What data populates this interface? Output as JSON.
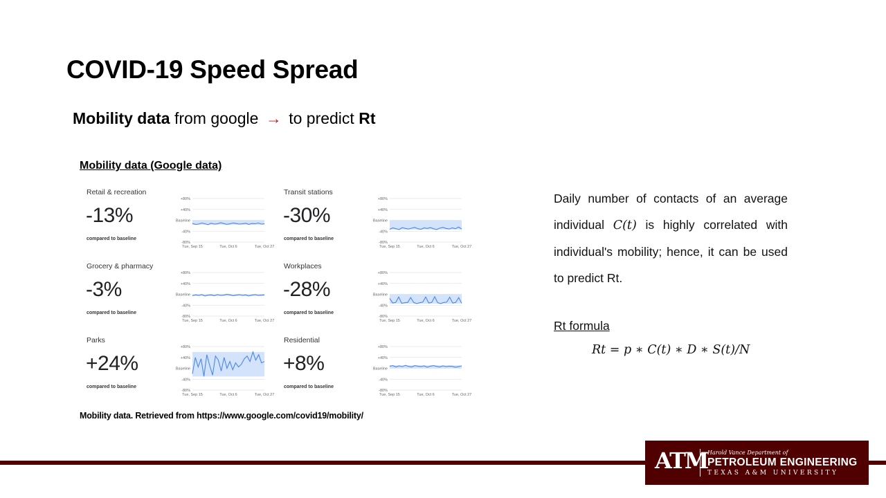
{
  "title": "COVID-19 Speed Spread",
  "subtitle": {
    "part1": "Mobility data",
    "part2": " from google ",
    "arrow": "→",
    "part3": " to predict ",
    "part4": "Rt"
  },
  "section_label": "Mobility data (Google data)",
  "chart_axis": {
    "y_ticks": [
      "+80%",
      "+40%",
      "Baseline",
      "-40%",
      "-80%"
    ],
    "x_ticks": [
      "Tue, Sep 15",
      "Tue, Oct 6",
      "Tue, Oct 27"
    ],
    "compared_label": "compared to baseline"
  },
  "chart_data": [
    {
      "type": "line",
      "category": "Retail & recreation",
      "change": "-13%",
      "ylim": [
        -80,
        80
      ],
      "values": [
        -12,
        -15,
        -14,
        -10,
        -13,
        -16,
        -11,
        -14,
        -13,
        -9,
        -12,
        -15,
        -13,
        -10,
        -12,
        -14,
        -13,
        -11,
        -15,
        -12,
        -13,
        -10,
        -14,
        -13
      ]
    },
    {
      "type": "line",
      "category": "Transit stations",
      "change": "-30%",
      "ylim": [
        -80,
        80
      ],
      "values": [
        -33,
        -28,
        -31,
        -34,
        -27,
        -30,
        -32,
        -29,
        -26,
        -31,
        -33,
        -28,
        -30,
        -27,
        -31,
        -34,
        -29,
        -26,
        -30,
        -32,
        -28,
        -31,
        -25,
        -32
      ]
    },
    {
      "type": "line",
      "category": "Grocery & pharmacy",
      "change": "-3%",
      "ylim": [
        -80,
        80
      ],
      "values": [
        -5,
        -2,
        -4,
        -1,
        -6,
        -3,
        -2,
        -5,
        -1,
        -4,
        -3,
        0,
        -2,
        -5,
        -3,
        -1,
        -4,
        -2,
        -6,
        -3,
        -1,
        -4,
        -3,
        -2
      ]
    },
    {
      "type": "line",
      "category": "Workplaces",
      "change": "-28%",
      "ylim": [
        -80,
        80
      ],
      "values": [
        -15,
        -32,
        -30,
        -10,
        -33,
        -31,
        -30,
        -12,
        -30,
        -34,
        -31,
        -29,
        -10,
        -32,
        -30,
        -9,
        -31,
        -34,
        -30,
        -29,
        -11,
        -32,
        -30,
        -12,
        -33
      ]
    },
    {
      "type": "line",
      "category": "Parks",
      "change": "+24%",
      "ylim": [
        -80,
        80
      ],
      "values": [
        -20,
        40,
        5,
        35,
        -30,
        50,
        10,
        -25,
        45,
        30,
        -10,
        40,
        0,
        25,
        -5,
        20,
        5,
        15,
        35,
        45,
        25,
        60,
        30,
        50,
        20,
        25
      ]
    },
    {
      "type": "line",
      "category": "Residential",
      "change": "+8%",
      "ylim": [
        -80,
        80
      ],
      "values": [
        8,
        10,
        5,
        9,
        6,
        11,
        7,
        5,
        10,
        8,
        6,
        9,
        4,
        8,
        10,
        7,
        5,
        9,
        6,
        8,
        7,
        4,
        6,
        9
      ]
    }
  ],
  "source": "Mobility data. Retrieved from https://www.google.com/covid19/mobility/",
  "paragraph": {
    "before": "Daily number of contacts of an average individual ",
    "math": "C(t)",
    "after": " is highly correlated with individual's mobility; hence, it can be used to predict Rt."
  },
  "rt_heading": "Rt formula",
  "formula": "Rt = p ∗ C(t) ∗ D ∗ S(t)/N",
  "logo": {
    "mark": "ATM",
    "department": "Harold Vance Department of",
    "name": "PETROLEUM ENGINEERING",
    "university": "TEXAS A&M UNIVERSITY"
  },
  "colors": {
    "maroon": "#500000",
    "arrow": "#b01e1e",
    "chart_line": "#4a86e8",
    "baseline_band": "#d3e3fb"
  }
}
